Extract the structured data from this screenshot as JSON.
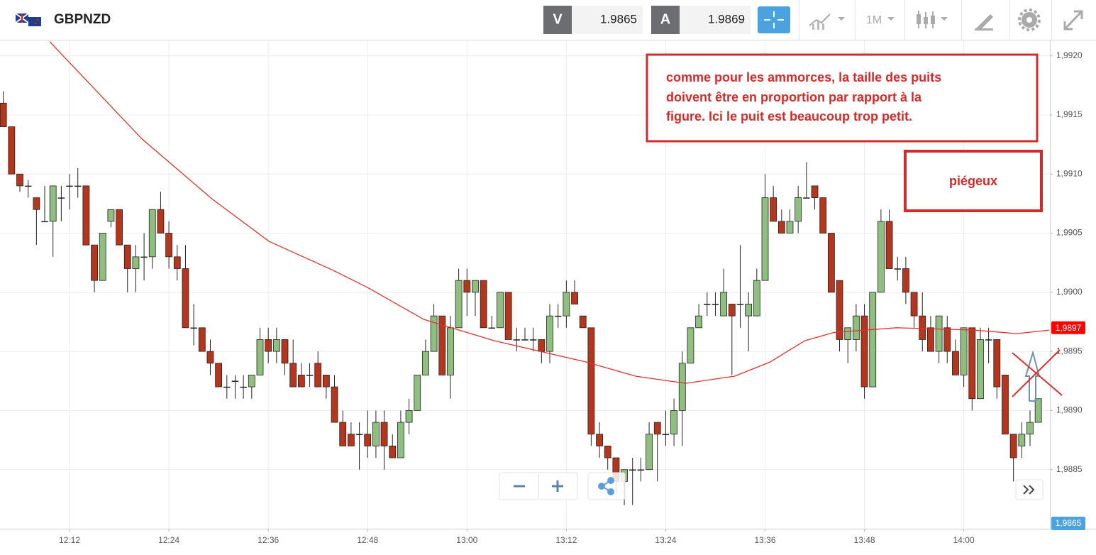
{
  "header": {
    "symbol": "GBPNZD",
    "sell_label": "V",
    "sell_price": "1.9865",
    "buy_label": "A",
    "buy_price": "1.9869",
    "timeframe": "1M"
  },
  "chart_data": {
    "type": "candlestick",
    "up_color": "#8fbf7f",
    "down_color": "#b5361c",
    "grid": true,
    "x": [
      724,
      725,
      726,
      727,
      728,
      729,
      730,
      731,
      732,
      733,
      734,
      735,
      736,
      737,
      738,
      739,
      740,
      741,
      742,
      743,
      744,
      745,
      746,
      747,
      748,
      749,
      750,
      751,
      752,
      753,
      754,
      755,
      756,
      757,
      758,
      759,
      760,
      761,
      762,
      763,
      764,
      765,
      766,
      767,
      768,
      769,
      770,
      771,
      772,
      773,
      774,
      775,
      776,
      777,
      778,
      779,
      780,
      781,
      782,
      783,
      784,
      785,
      786,
      787,
      788,
      789,
      790,
      791,
      792,
      793,
      794,
      795,
      796,
      797,
      798,
      799,
      800,
      801,
      802,
      803,
      804,
      805,
      806,
      807,
      808,
      809,
      810,
      811,
      812,
      813,
      814,
      815,
      816,
      817,
      818,
      819,
      820,
      821,
      822,
      823,
      824,
      825,
      826,
      827,
      828,
      829,
      830,
      831,
      832,
      833,
      834,
      835,
      836,
      837,
      838,
      839,
      840,
      841,
      842,
      843,
      844,
      845,
      846,
      847,
      848,
      849
    ],
    "open": [
      1.9916,
      1.9914,
      1.991,
      1.9909,
      1.9908,
      1.9906,
      1.9906,
      1.9908,
      1.9909,
      1.9909,
      1.9909,
      1.9904,
      1.9901,
      1.9906,
      1.9907,
      1.9904,
      1.9902,
      1.9903,
      1.9903,
      1.9907,
      1.9905,
      1.9903,
      1.9902,
      1.9897,
      1.9897,
      1.9895,
      1.9894,
      1.9892,
      1.98925,
      1.9892,
      1.9892,
      1.9893,
      1.9896,
      1.9895,
      1.9896,
      1.9894,
      1.9893,
      1.9893,
      1.9894,
      1.9893,
      1.9892,
      1.9889,
      1.9888,
      1.9888,
      1.9888,
      1.9887,
      1.9889,
      1.9887,
      1.9886,
      1.9889,
      1.989,
      1.9893,
      1.9895,
      1.9898,
      1.9893,
      1.9897,
      1.9901,
      1.99,
      1.9901,
      1.9897,
      1.9897,
      1.99,
      1.9896,
      1.9896,
      1.9896,
      1.9896,
      1.9895,
      1.9898,
      1.9898,
      1.99,
      1.9898,
      1.9897,
      1.9888,
      1.9887,
      1.9886,
      1.9884,
      1.9885,
      1.9885,
      1.9885,
      1.9889,
      1.9888,
      1.9888,
      1.989,
      1.9894,
      1.9897,
      1.9899,
      1.9899,
      1.9898,
      1.9899,
      1.9899,
      1.9898,
      1.9898,
      1.9901,
      1.9908,
      1.9906,
      1.9905,
      1.9906,
      1.9908,
      1.9909,
      1.9908,
      1.9905,
      1.9901,
      1.9896,
      1.9896,
      1.9898,
      1.9892,
      1.99,
      1.9906,
      1.9902,
      1.9902,
      1.99,
      1.9898,
      1.9897,
      1.9895,
      1.9897,
      1.9895,
      1.9893,
      1.9897,
      1.9891,
      1.9896,
      1.9896,
      1.9893,
      1.9888,
      1.9887,
      1.9888,
      1.9889
    ],
    "high": [
      1.9917,
      1.9914,
      1.991,
      1.99095,
      1.9908,
      1.9909,
      1.9909,
      1.9909,
      1.991,
      1.99105,
      1.9909,
      1.9904,
      1.9905,
      1.9907,
      1.9907,
      1.9904,
      1.9904,
      1.9905,
      1.9907,
      1.99085,
      1.9906,
      1.9904,
      1.9904,
      1.9899,
      1.9897,
      1.9896,
      1.9894,
      1.9893,
      1.9893,
      1.9893,
      1.9893,
      1.9897,
      1.9897,
      1.9897,
      1.9896,
      1.9896,
      1.9894,
      1.9894,
      1.9895,
      1.9893,
      1.9893,
      1.989,
      1.9889,
      1.9889,
      1.989,
      1.989,
      1.989,
      1.9888,
      1.989,
      1.9891,
      1.9893,
      1.9896,
      1.9899,
      1.9898,
      1.9898,
      1.9902,
      1.9902,
      1.9901,
      1.9901,
      1.9898,
      1.99,
      1.99,
      1.9897,
      1.9897,
      1.9897,
      1.9896,
      1.9899,
      1.9899,
      1.9901,
      1.9901,
      1.9898,
      1.9897,
      1.9889,
      1.9887,
      1.9886,
      1.9885,
      1.9886,
      1.9886,
      1.9889,
      1.9889,
      1.989,
      1.9891,
      1.9895,
      1.9897,
      1.9899,
      1.99,
      1.99,
      1.9902,
      1.9899,
      1.9904,
      1.99,
      1.9902,
      1.991,
      1.9909,
      1.9907,
      1.9907,
      1.9909,
      1.9911,
      1.9909,
      1.9908,
      1.9905,
      1.9901,
      1.9897,
      1.9899,
      1.9899,
      1.99,
      1.9907,
      1.9907,
      1.9903,
      1.9903,
      1.99,
      1.99,
      1.9898,
      1.9898,
      1.9898,
      1.9896,
      1.9897,
      1.9897,
      1.9897,
      1.9897,
      1.9896,
      1.9893,
      1.9888,
      1.9889,
      1.989,
      1.9891
    ],
    "low": [
      1.9914,
      1.991,
      1.99085,
      1.9908,
      1.9904,
      1.9906,
      1.9903,
      1.9906,
      1.9907,
      1.9908,
      1.9904,
      1.99,
      1.9901,
      1.99055,
      1.9904,
      1.99,
      1.99,
      1.9901,
      1.9902,
      1.9905,
      1.9902,
      1.9901,
      1.9897,
      1.98955,
      1.9895,
      1.9893,
      1.9892,
      1.9891,
      1.9891,
      1.9891,
      1.9891,
      1.9893,
      1.9894,
      1.9894,
      1.9893,
      1.9892,
      1.9892,
      1.9892,
      1.9892,
      1.9891,
      1.9889,
      1.9887,
      1.9887,
      1.9885,
      1.9886,
      1.9886,
      1.9885,
      1.9886,
      1.9886,
      1.9888,
      1.989,
      1.9893,
      1.9895,
      1.9893,
      1.9891,
      1.9897,
      1.9898,
      1.9898,
      1.9897,
      1.9897,
      1.9897,
      1.9896,
      1.9895,
      1.9896,
      1.9895,
      1.9894,
      1.9894,
      1.9897,
      1.9897,
      1.9899,
      1.9897,
      1.9887,
      1.9886,
      1.9885,
      1.9883,
      1.9882,
      1.9882,
      1.9884,
      1.9885,
      1.9884,
      1.9887,
      1.9887,
      1.9887,
      1.9894,
      1.9897,
      1.9898,
      1.9898,
      1.9898,
      1.9893,
      1.9897,
      1.9895,
      1.9898,
      1.9901,
      1.9906,
      1.9905,
      1.9905,
      1.9905,
      1.9908,
      1.9907,
      1.9905,
      1.99,
      1.9895,
      1.9894,
      1.9895,
      1.9891,
      1.9892,
      1.99,
      1.9902,
      1.9901,
      1.9899,
      1.9897,
      1.9895,
      1.9895,
      1.9894,
      1.9894,
      1.9893,
      1.9892,
      1.989,
      1.9891,
      1.9894,
      1.9891,
      1.9888,
      1.9884,
      1.9886,
      1.9887,
      1.9889
    ],
    "close": [
      1.9914,
      1.991,
      1.9909,
      1.9909,
      1.9907,
      1.9906,
      1.9909,
      1.9908,
      1.9909,
      1.9909,
      1.9904,
      1.9901,
      1.9905,
      1.9907,
      1.9904,
      1.9902,
      1.9903,
      1.9903,
      1.9907,
      1.9905,
      1.9903,
      1.9902,
      1.9897,
      1.9897,
      1.9895,
      1.9894,
      1.9892,
      1.9892,
      1.98925,
      1.9892,
      1.9893,
      1.9896,
      1.9895,
      1.9896,
      1.9894,
      1.9892,
      1.9892,
      1.9893,
      1.9892,
      1.9892,
      1.9889,
      1.9887,
      1.9887,
      1.9888,
      1.9887,
      1.9889,
      1.9887,
      1.9886,
      1.9889,
      1.989,
      1.9893,
      1.9895,
      1.9898,
      1.9893,
      1.9897,
      1.9901,
      1.99,
      1.9901,
      1.9897,
      1.9897,
      1.99,
      1.9896,
      1.9896,
      1.9896,
      1.9896,
      1.9895,
      1.9898,
      1.9898,
      1.99,
      1.9899,
      1.9897,
      1.9888,
      1.9887,
      1.9886,
      1.9884,
      1.9885,
      1.9885,
      1.9885,
      1.9888,
      1.9888,
      1.9888,
      1.989,
      1.9894,
      1.9897,
      1.9898,
      1.9899,
      1.9899,
      1.99,
      1.9898,
      1.9899,
      1.9899,
      1.9901,
      1.9908,
      1.9906,
      1.9905,
      1.9906,
      1.9908,
      1.9908,
      1.9908,
      1.9905,
      1.99,
      1.9896,
      1.9897,
      1.9898,
      1.9892,
      1.99,
      1.9906,
      1.9902,
      1.9902,
      1.99,
      1.9898,
      1.9896,
      1.9895,
      1.9898,
      1.9895,
      1.9893,
      1.9897,
      1.9891,
      1.9896,
      1.9896,
      1.9892,
      1.9888,
      1.9886,
      1.9888,
      1.9889,
      1.9891
    ],
    "line": {
      "color": "#e2302c",
      "x": [
        729.6,
        740.7,
        749.2,
        756.1,
        763.7,
        768.0,
        774.8,
        783.3,
        794.4,
        800.4,
        806.4,
        812.3,
        816.6,
        820.8,
        824.3,
        831.9,
        841.3,
        846.4,
        850.3
      ],
      "values": [
        1.99212,
        1.9913,
        1.99079,
        1.99043,
        1.99019,
        1.99004,
        1.98977,
        1.98959,
        1.98941,
        1.98929,
        1.98923,
        1.98929,
        1.98941,
        1.98959,
        1.98966,
        1.9897,
        1.98968,
        1.98965,
        1.98968
      ]
    },
    "xlim": [
      723.6,
      850.4
    ],
    "xticks": [
      {
        "value": 732,
        "label": "12:12"
      },
      {
        "value": 744,
        "label": "12:24"
      },
      {
        "value": 756,
        "label": "12:36"
      },
      {
        "value": 768,
        "label": "12:48"
      },
      {
        "value": 780,
        "label": "13:00"
      },
      {
        "value": 792,
        "label": "13:12"
      },
      {
        "value": 804,
        "label": "13:24"
      },
      {
        "value": 816,
        "label": "13:36"
      },
      {
        "value": 828,
        "label": "13:48"
      },
      {
        "value": 840,
        "label": "14:00"
      }
    ],
    "ylim": [
      1.988,
      1.99213
    ],
    "yticks": [
      {
        "value": 1.9885,
        "label": "1,9885"
      },
      {
        "value": 1.989,
        "label": "1,9890"
      },
      {
        "value": 1.9895,
        "label": "1,9895"
      },
      {
        "value": 1.99,
        "label": "1,9900"
      },
      {
        "value": 1.9905,
        "label": "1,9905"
      },
      {
        "value": 1.991,
        "label": "1,9910"
      },
      {
        "value": 1.9915,
        "label": "1,9915"
      },
      {
        "value": 1.992,
        "label": "1,9920"
      }
    ],
    "tags": [
      {
        "value": 1.9897,
        "label": "1,9897",
        "color": "#ff0000"
      }
    ],
    "bottom_tag": "1,9865",
    "annotations": [
      {
        "lines": [
          "comme pour les ammorces, la taille des puits",
          "doivent être en proportion par rapport à la",
          "figure. Ici le puit est beaucoup trop petit."
        ]
      },
      {
        "lines": [
          "piégeux"
        ]
      }
    ]
  }
}
